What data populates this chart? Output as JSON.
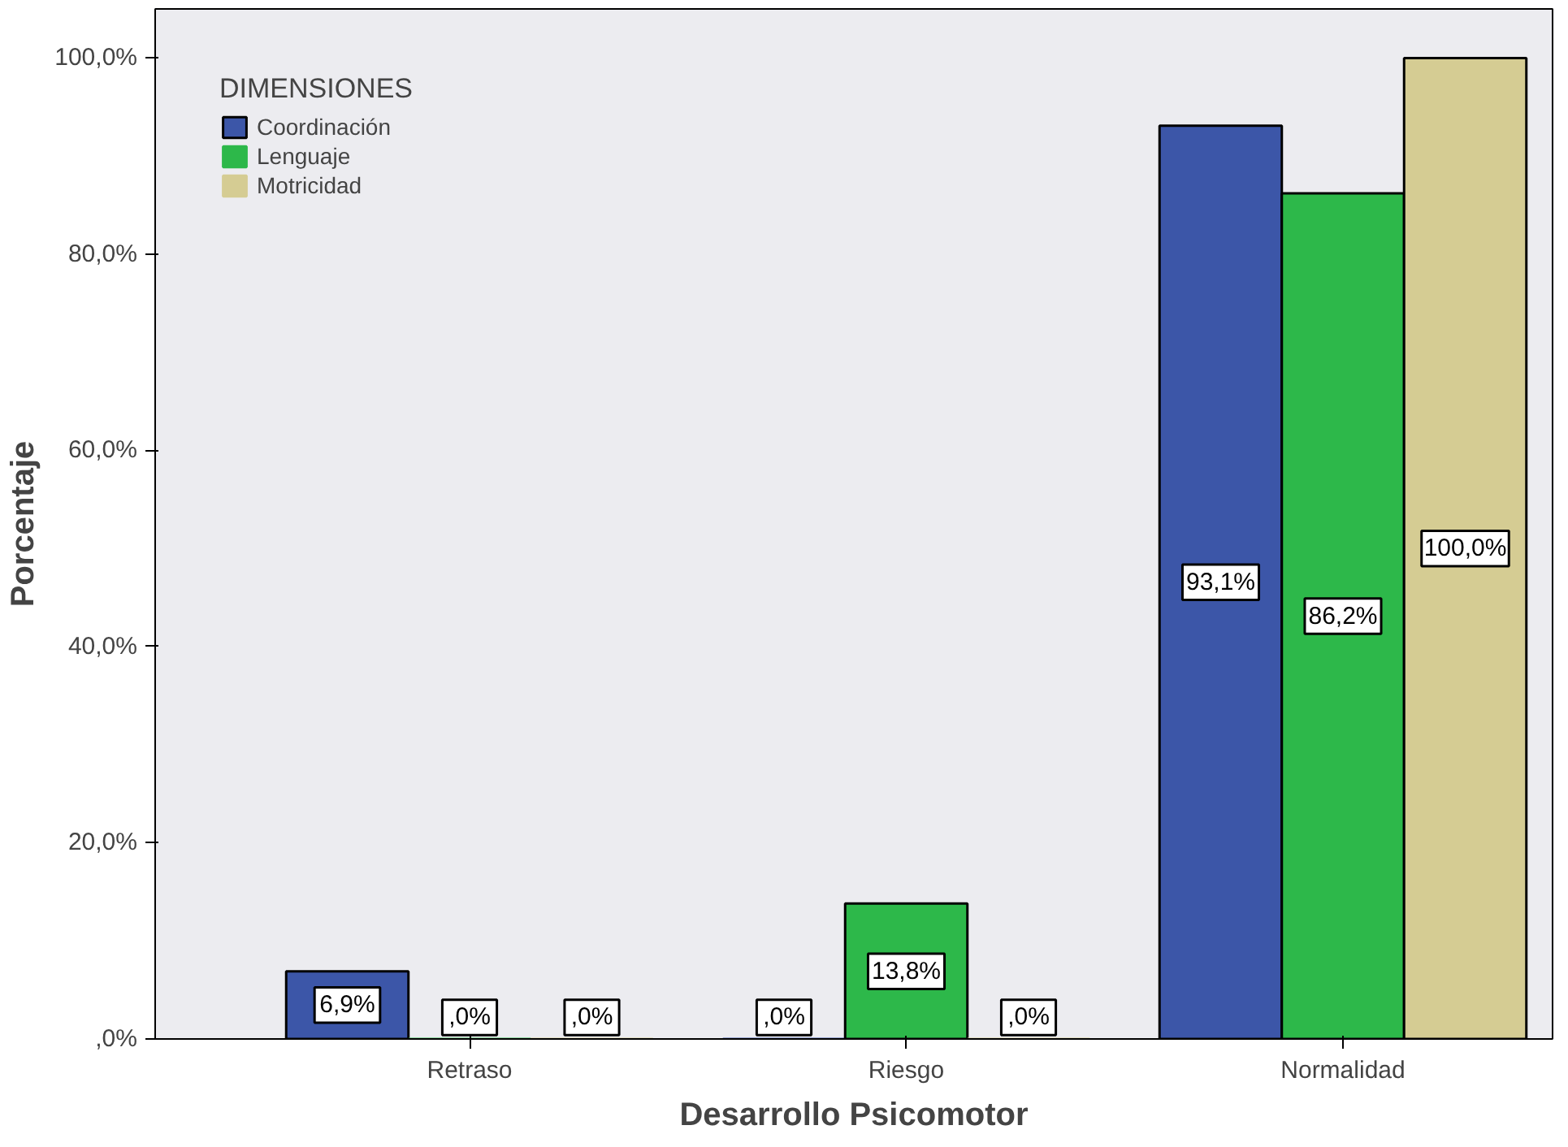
{
  "chart_data": {
    "type": "bar",
    "xlabel": "Desarrollo Psicomotor",
    "ylabel": "Porcentaje",
    "legend_title": "DIMENSIONES",
    "categories": [
      "Retraso",
      "Riesgo",
      "Normalidad"
    ],
    "series": [
      {
        "name": "Coordinación",
        "color": "#3c56a8",
        "values": [
          6.9,
          0,
          93.1
        ],
        "value_labels": [
          "6,9%",
          ",0%",
          "93,1%"
        ]
      },
      {
        "name": "Lenguaje",
        "color": "#2db84a",
        "values": [
          0,
          13.8,
          86.2
        ],
        "value_labels": [
          ",0%",
          "13,8%",
          "86,2%"
        ]
      },
      {
        "name": "Motricidad",
        "color": "#d5cc93",
        "values": [
          0,
          0,
          100
        ],
        "value_labels": [
          ",0%",
          ",0%",
          "100,0%"
        ]
      }
    ],
    "ylim": [
      0,
      105
    ],
    "yticks": [
      {
        "value": 0,
        "label": ",0%"
      },
      {
        "value": 20,
        "label": "20,0%"
      },
      {
        "value": 40,
        "label": "40,0%"
      },
      {
        "value": 60,
        "label": "60,0%"
      },
      {
        "value": 80,
        "label": "80,0%"
      },
      {
        "value": 100,
        "label": "100,0%"
      }
    ],
    "grid": false,
    "legend": "top left"
  }
}
